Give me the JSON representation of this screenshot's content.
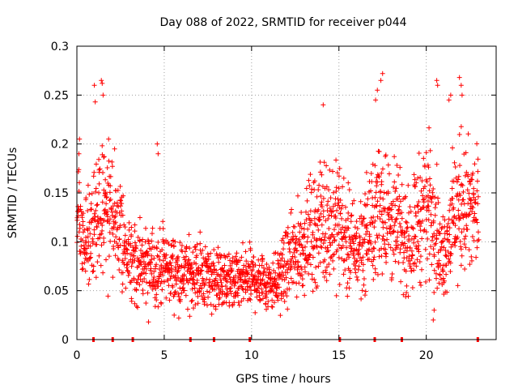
{
  "chart_data": {
    "type": "scatter",
    "title": "Day 088 of 2022, SRMTID for receiver p044",
    "xlabel": "GPS time / hours",
    "ylabel": "SRMTID / TECUs",
    "xlim": [
      0,
      24
    ],
    "ylim": [
      0,
      0.3
    ],
    "grid": true,
    "marker": "+",
    "marker_color": "#ff0000",
    "x_ticks": [
      0,
      5,
      10,
      15,
      20
    ],
    "x_tick_labels": [
      "0",
      "5",
      "10",
      "15",
      "20"
    ],
    "y_ticks": [
      0,
      0.05,
      0.1,
      0.15,
      0.2,
      0.25,
      0.3
    ],
    "y_tick_labels": [
      "0",
      "0.05",
      "0.1",
      "0.15",
      "0.2",
      "0.25",
      "0.3"
    ],
    "zero_marks_x": [
      0.95,
      2.05,
      3.2,
      6.5,
      7.85,
      9.9,
      15.05,
      17.05,
      18.6,
      22.95
    ],
    "trend": [
      {
        "t": 0.0,
        "y": 0.13
      },
      {
        "t": 0.5,
        "y": 0.1
      },
      {
        "t": 1.0,
        "y": 0.12
      },
      {
        "t": 1.5,
        "y": 0.14
      },
      {
        "t": 2.0,
        "y": 0.13
      },
      {
        "t": 2.5,
        "y": 0.11
      },
      {
        "t": 3.0,
        "y": 0.08
      },
      {
        "t": 4.0,
        "y": 0.072
      },
      {
        "t": 5.0,
        "y": 0.075
      },
      {
        "t": 6.0,
        "y": 0.066
      },
      {
        "t": 7.0,
        "y": 0.068
      },
      {
        "t": 8.0,
        "y": 0.063
      },
      {
        "t": 9.0,
        "y": 0.058
      },
      {
        "t": 10.0,
        "y": 0.063
      },
      {
        "t": 11.0,
        "y": 0.06
      },
      {
        "t": 11.5,
        "y": 0.062
      },
      {
        "t": 12.0,
        "y": 0.075
      },
      {
        "t": 13.0,
        "y": 0.1
      },
      {
        "t": 14.0,
        "y": 0.12
      },
      {
        "t": 15.0,
        "y": 0.12
      },
      {
        "t": 15.5,
        "y": 0.1
      },
      {
        "t": 16.0,
        "y": 0.09
      },
      {
        "t": 17.0,
        "y": 0.12
      },
      {
        "t": 17.5,
        "y": 0.14
      },
      {
        "t": 18.0,
        "y": 0.12
      },
      {
        "t": 18.5,
        "y": 0.11
      },
      {
        "t": 19.0,
        "y": 0.1
      },
      {
        "t": 19.5,
        "y": 0.12
      },
      {
        "t": 20.0,
        "y": 0.14
      },
      {
        "t": 20.5,
        "y": 0.13
      },
      {
        "t": 20.8,
        "y": 0.08
      },
      {
        "t": 21.0,
        "y": 0.09
      },
      {
        "t": 21.5,
        "y": 0.12
      },
      {
        "t": 22.0,
        "y": 0.14
      },
      {
        "t": 22.5,
        "y": 0.13
      },
      {
        "t": 23.0,
        "y": 0.13
      }
    ],
    "highlights": [
      {
        "t": 1.0,
        "y": 0.26
      },
      {
        "t": 1.05,
        "y": 0.243
      },
      {
        "t": 1.4,
        "y": 0.265
      },
      {
        "t": 1.45,
        "y": 0.262
      },
      {
        "t": 1.5,
        "y": 0.25
      },
      {
        "t": 0.15,
        "y": 0.205
      },
      {
        "t": 4.6,
        "y": 0.2
      },
      {
        "t": 4.65,
        "y": 0.19
      },
      {
        "t": 14.1,
        "y": 0.24
      },
      {
        "t": 17.5,
        "y": 0.272
      },
      {
        "t": 17.4,
        "y": 0.265
      },
      {
        "t": 17.2,
        "y": 0.255
      },
      {
        "t": 17.1,
        "y": 0.245
      },
      {
        "t": 20.6,
        "y": 0.265
      },
      {
        "t": 20.65,
        "y": 0.26
      },
      {
        "t": 21.4,
        "y": 0.25
      },
      {
        "t": 21.3,
        "y": 0.245
      },
      {
        "t": 21.9,
        "y": 0.268
      },
      {
        "t": 22.0,
        "y": 0.26
      },
      {
        "t": 22.05,
        "y": 0.25
      },
      {
        "t": 20.4,
        "y": 0.02
      },
      {
        "t": 20.45,
        "y": 0.03
      },
      {
        "t": 4.1,
        "y": 0.018
      }
    ]
  }
}
